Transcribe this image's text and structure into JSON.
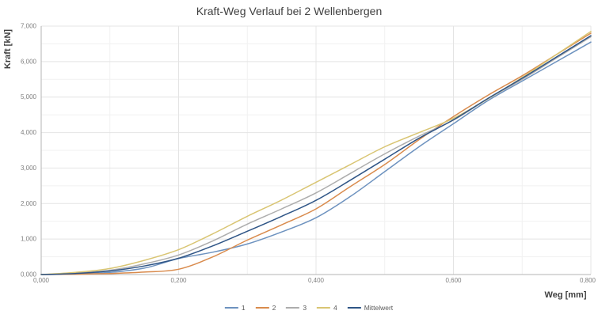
{
  "page": {
    "title": "Kraft-Weg Verlauf bei 2 Wellenbergen"
  },
  "chart_data": {
    "type": "line",
    "title": "Kraft-Weg Verlauf bei 2 Wellenbergen",
    "xlabel": "Weg [mm]",
    "ylabel": "Kraft [kN]",
    "xlim": [
      0,
      0.8
    ],
    "ylim": [
      0,
      7
    ],
    "grid": {
      "x_major": 0.2,
      "x_minor": 0.1,
      "y_major": 1.0,
      "y_minor": 0.5,
      "visible": true
    },
    "legend_position": "bottom",
    "x_ticks": [
      {
        "v": 0.0,
        "label": "0,000"
      },
      {
        "v": 0.2,
        "label": "0,200"
      },
      {
        "v": 0.4,
        "label": "0,400"
      },
      {
        "v": 0.6,
        "label": "0,600"
      },
      {
        "v": 0.8,
        "label": "0,800"
      }
    ],
    "y_ticks": [
      {
        "v": 0,
        "label": "0,000"
      },
      {
        "v": 1,
        "label": "1,000"
      },
      {
        "v": 2,
        "label": "2,000"
      },
      {
        "v": 3,
        "label": "3,000"
      },
      {
        "v": 4,
        "label": "4,000"
      },
      {
        "v": 5,
        "label": "5,000"
      },
      {
        "v": 6,
        "label": "6,000"
      },
      {
        "v": 7,
        "label": "7,000"
      }
    ],
    "x": [
      0,
      0.05,
      0.1,
      0.15,
      0.2,
      0.25,
      0.3,
      0.35,
      0.4,
      0.45,
      0.5,
      0.55,
      0.6,
      0.65,
      0.7,
      0.75,
      0.8
    ],
    "series": [
      {
        "name": "1",
        "color": "#6d92bf",
        "values": [
          0,
          0.02,
          0.06,
          0.18,
          0.45,
          0.63,
          0.86,
          1.2,
          1.6,
          2.2,
          2.9,
          3.6,
          4.25,
          4.9,
          5.45,
          6.0,
          6.55
        ]
      },
      {
        "name": "2",
        "color": "#d98b4d",
        "values": [
          0,
          0.01,
          0.03,
          0.07,
          0.15,
          0.5,
          0.97,
          1.4,
          1.85,
          2.48,
          3.1,
          3.8,
          4.45,
          5.05,
          5.6,
          6.2,
          6.8
        ]
      },
      {
        "name": "3",
        "color": "#adadad",
        "values": [
          0,
          0.04,
          0.12,
          0.3,
          0.55,
          0.95,
          1.42,
          1.85,
          2.3,
          2.85,
          3.4,
          3.9,
          4.35,
          4.95,
          5.5,
          6.1,
          6.7
        ]
      },
      {
        "name": "4",
        "color": "#d9c573",
        "values": [
          0,
          0.06,
          0.17,
          0.4,
          0.7,
          1.15,
          1.64,
          2.1,
          2.6,
          3.1,
          3.6,
          4.0,
          4.4,
          4.95,
          5.55,
          6.2,
          6.85
        ]
      },
      {
        "name": "Mittelwert",
        "color": "#2f5586",
        "values": [
          0,
          0.03,
          0.1,
          0.24,
          0.46,
          0.81,
          1.22,
          1.64,
          2.09,
          2.66,
          3.25,
          3.84,
          4.36,
          4.96,
          5.53,
          6.13,
          6.73
        ]
      }
    ],
    "style": {
      "title_color": "#3f3f3f",
      "tick_color": "#7f7f7f",
      "axis_label_color": "#404040",
      "axis_line_color": "#b5b5b5",
      "grid_major_color": "#e4e4e4",
      "grid_minor_color": "#f1f1f1",
      "background": "#ffffff"
    }
  }
}
